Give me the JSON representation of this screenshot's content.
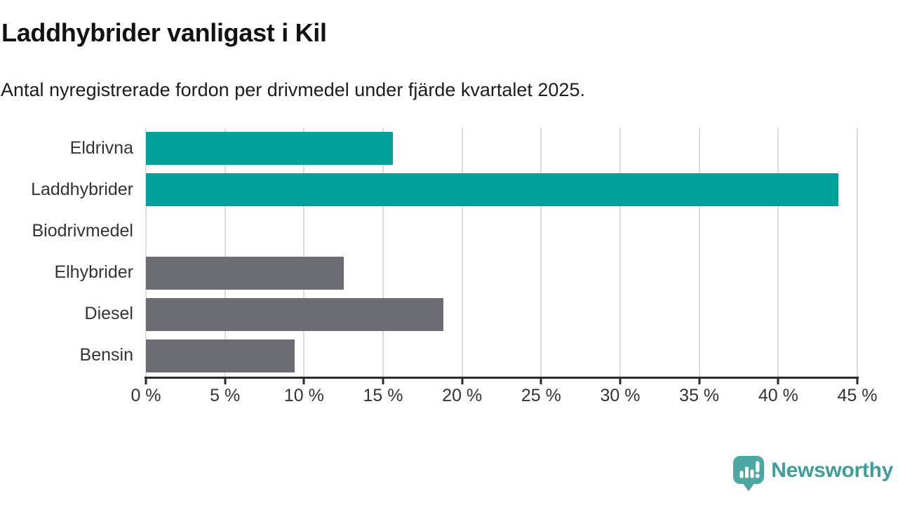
{
  "title": "Laddhybrider vanligast i Kil",
  "subtitle": "Antal nyregistrerade fordon per drivmedel under fjärde kvartalet 2025.",
  "chart_data": {
    "type": "bar",
    "orientation": "horizontal",
    "title": "Laddhybrider vanligast i Kil",
    "subtitle": "Antal nyregistrerade fordon per drivmedel under fjärde kvartalet 2025.",
    "categories": [
      "Eldrivna",
      "Laddhybrider",
      "Biodrivmedel",
      "Elhybrider",
      "Diesel",
      "Bensin"
    ],
    "values": [
      15.6,
      43.8,
      0,
      12.5,
      18.8,
      9.4
    ],
    "unit": "%",
    "xlim": [
      0,
      45
    ],
    "x_ticks": [
      0,
      5,
      10,
      15,
      20,
      25,
      30,
      35,
      40,
      45
    ],
    "x_tick_labels": [
      "0 %",
      "5 %",
      "10 %",
      "15 %",
      "20 %",
      "25 %",
      "30 %",
      "35 %",
      "40 %",
      "45 %"
    ],
    "bar_colors": [
      "#00a09a",
      "#00a09a",
      "#6b6b73",
      "#6b6b73",
      "#6b6b73",
      "#6b6b73"
    ],
    "grid": true,
    "legend": null
  },
  "colors": {
    "bar_highlight": "#00a09a",
    "bar_default": "#6b6b73",
    "gridline": "#dcdcdc",
    "axis": "#2b2b2b",
    "logo_icon": "#4ca7a3",
    "logo_text": "#3e9e9a"
  },
  "footer": {
    "brand": "Newsworthy"
  }
}
